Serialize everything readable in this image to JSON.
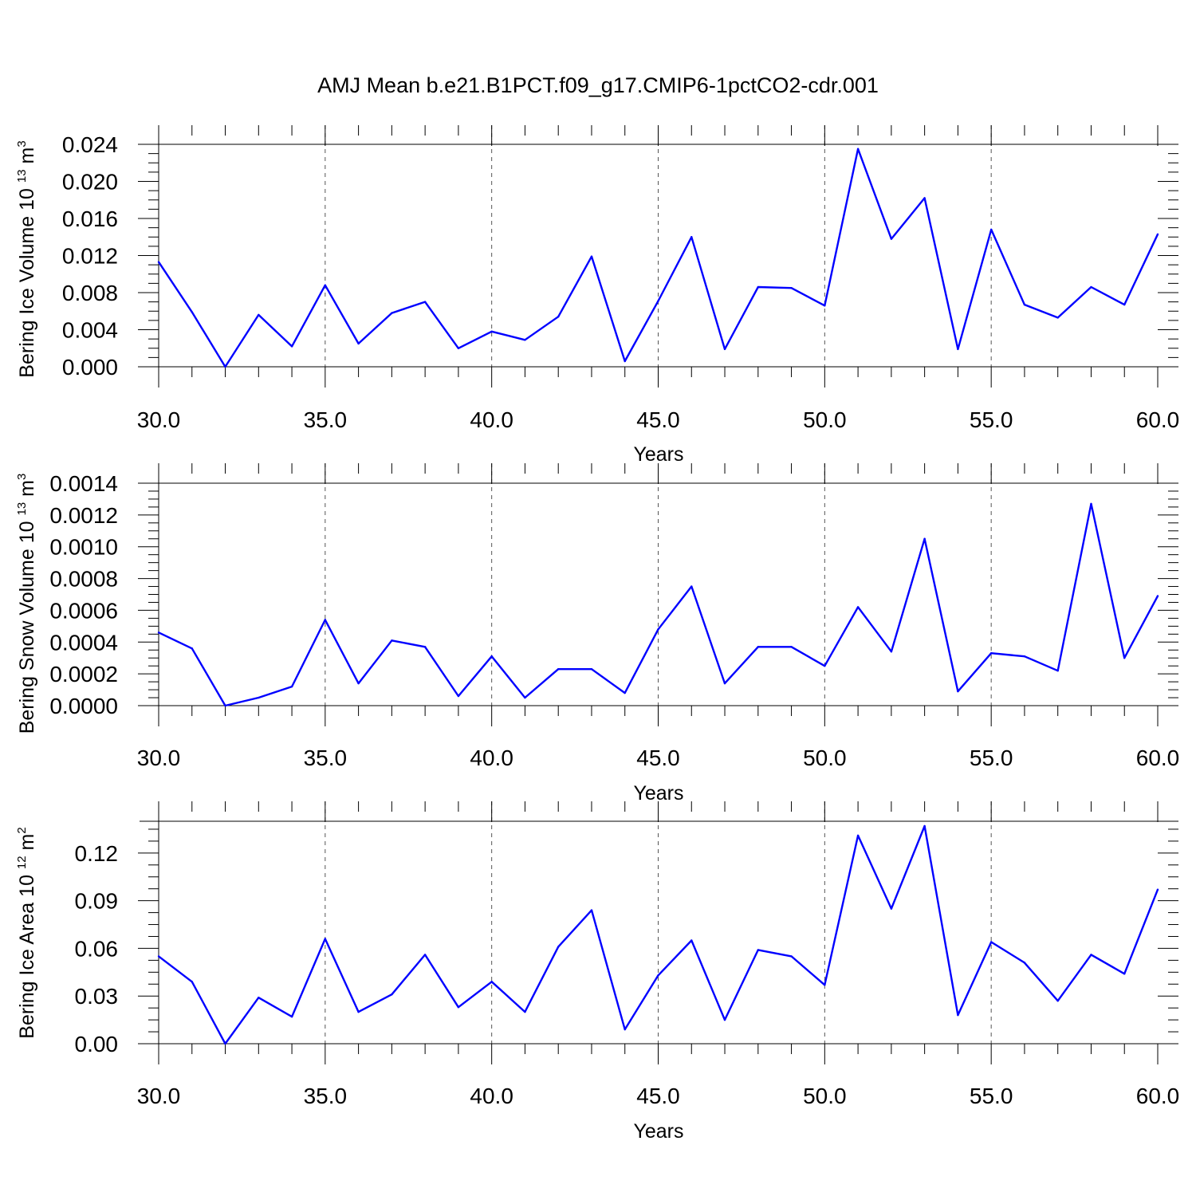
{
  "title": "AMJ Mean b.e21.B1PCT.f09_g17.CMIP6-1pctCO2-cdr.001",
  "colors": {
    "line": "#0000ff",
    "axis": "#000000",
    "grid": "#555555"
  },
  "chart_data": [
    {
      "type": "line",
      "ylabel": "Bering Ice Volume 10",
      "ylabel_exp": "13",
      "ylabel_unit": "m",
      "ylabel_unit_exp": "3",
      "xlabel": "Years",
      "xlim": [
        30,
        60
      ],
      "ylim": [
        0,
        0.024
      ],
      "xticks": [
        "30.0",
        "35.0",
        "40.0",
        "45.0",
        "50.0",
        "55.0",
        "60.0"
      ],
      "yticks": [
        "0.000",
        "0.004",
        "0.008",
        "0.012",
        "0.016",
        "0.020",
        "0.024"
      ],
      "grid": "vertical dashed at major x ticks",
      "x": [
        30,
        31,
        32,
        33,
        34,
        35,
        36,
        37,
        38,
        39,
        40,
        41,
        42,
        43,
        44,
        45,
        46,
        47,
        48,
        49,
        50,
        51,
        52,
        53,
        54,
        55,
        56,
        57,
        58,
        59,
        60
      ],
      "y": [
        0.0113,
        0.0059,
        0.0,
        0.0056,
        0.0022,
        0.0088,
        0.0025,
        0.0058,
        0.007,
        0.002,
        0.0038,
        0.0029,
        0.0054,
        0.0119,
        0.0006,
        0.0071,
        0.014,
        0.0019,
        0.0086,
        0.0085,
        0.0066,
        0.0235,
        0.0138,
        0.0182,
        0.0019,
        0.0148,
        0.0067,
        0.0053,
        0.0086,
        0.0067,
        0.0143
      ]
    },
    {
      "type": "line",
      "ylabel": "Bering Snow Volume 10",
      "ylabel_exp": "13",
      "ylabel_unit": "m",
      "ylabel_unit_exp": "3",
      "xlabel": "Years",
      "xlim": [
        30,
        60
      ],
      "ylim": [
        0,
        0.0014
      ],
      "xticks": [
        "30.0",
        "35.0",
        "40.0",
        "45.0",
        "50.0",
        "55.0",
        "60.0"
      ],
      "yticks": [
        "0.0000",
        "0.0002",
        "0.0004",
        "0.0006",
        "0.0008",
        "0.0010",
        "0.0012",
        "0.0014"
      ],
      "grid": "vertical dashed at major x ticks",
      "x": [
        30,
        31,
        32,
        33,
        34,
        35,
        36,
        37,
        38,
        39,
        40,
        41,
        42,
        43,
        44,
        45,
        46,
        47,
        48,
        49,
        50,
        51,
        52,
        53,
        54,
        55,
        56,
        57,
        58,
        59,
        60
      ],
      "y": [
        0.00046,
        0.00036,
        0.0,
        5e-05,
        0.00012,
        0.00054,
        0.00014,
        0.00041,
        0.00037,
        6e-05,
        0.00031,
        5e-05,
        0.00023,
        0.00023,
        8e-05,
        0.00048,
        0.00075,
        0.00014,
        0.00037,
        0.00037,
        0.00025,
        0.00062,
        0.00034,
        0.00105,
        9e-05,
        0.00033,
        0.00031,
        0.00022,
        0.00127,
        0.0003,
        0.00069
      ]
    },
    {
      "type": "line",
      "ylabel": "Bering Ice Area 10",
      "ylabel_exp": "12",
      "ylabel_unit": "m",
      "ylabel_unit_exp": "2",
      "xlabel": "Years",
      "xlim": [
        30,
        60
      ],
      "ylim": [
        0,
        0.14
      ],
      "xticks": [
        "30.0",
        "35.0",
        "40.0",
        "45.0",
        "50.0",
        "55.0",
        "60.0"
      ],
      "yticks": [
        "0.00",
        "0.03",
        "0.06",
        "0.09",
        "0.12"
      ],
      "grid": "vertical dashed at major x ticks",
      "x": [
        30,
        31,
        32,
        33,
        34,
        35,
        36,
        37,
        38,
        39,
        40,
        41,
        42,
        43,
        44,
        45,
        46,
        47,
        48,
        49,
        50,
        51,
        52,
        53,
        54,
        55,
        56,
        57,
        58,
        59,
        60
      ],
      "y": [
        0.055,
        0.039,
        0.0,
        0.029,
        0.017,
        0.066,
        0.02,
        0.031,
        0.056,
        0.023,
        0.039,
        0.02,
        0.061,
        0.084,
        0.009,
        0.043,
        0.065,
        0.015,
        0.059,
        0.055,
        0.037,
        0.131,
        0.085,
        0.137,
        0.018,
        0.064,
        0.051,
        0.027,
        0.056,
        0.044,
        0.097
      ]
    }
  ]
}
